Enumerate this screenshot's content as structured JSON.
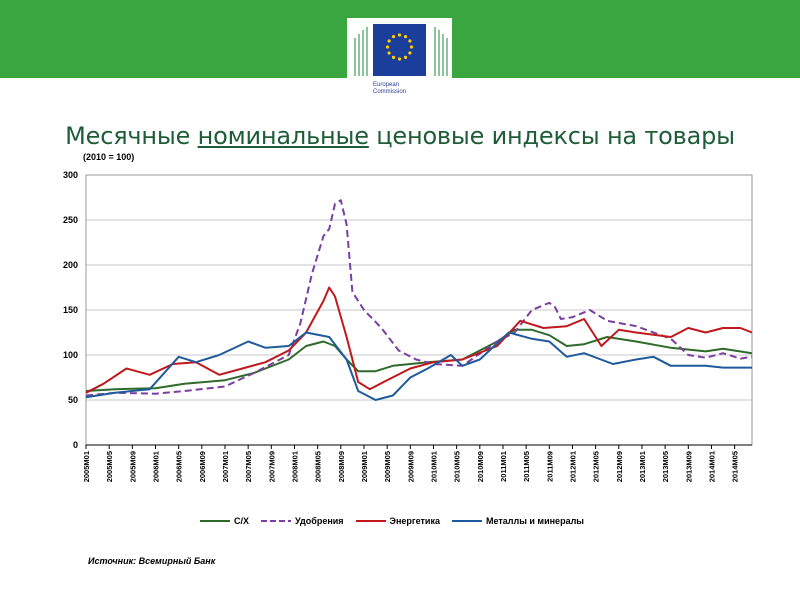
{
  "header": {
    "logo_text_line1": "European",
    "logo_text_line2": "Commission"
  },
  "colors": {
    "band": "#3aa640",
    "title": "#1f5d3a",
    "grid": "#c8c8c8",
    "series_cx": "#2e6b2a",
    "series_fert": "#7a3fa0",
    "series_energy": "#c0181c",
    "series_metals": "#1f5a9c"
  },
  "slide": {
    "title_pre": "Месячные ",
    "title_underlined": "номинальные",
    "title_post": " ценовые индексы на товары",
    "source": "Источник: Всемирный Банк"
  },
  "chart_data": {
    "type": "line",
    "title": "",
    "unit_note": "(2010 = 100)",
    "xlabel": "",
    "ylabel": "",
    "ylim": [
      0,
      300
    ],
    "yticks": [
      0,
      50,
      100,
      150,
      200,
      250,
      300
    ],
    "grid": true,
    "legend_position": "bottom",
    "x_range": [
      "2005M01",
      "2014M08"
    ],
    "xticks": [
      "2005M01",
      "2005M05",
      "2005M09",
      "2006M01",
      "2006M05",
      "2006M09",
      "2007M01",
      "2007M05",
      "2007M09",
      "2008M01",
      "2008M05",
      "2008M09",
      "2009M01",
      "2009M05",
      "2009M09",
      "2010M01",
      "2010M05",
      "2010M09",
      "2011M01",
      "2011M05",
      "2011M09",
      "2012M01",
      "2012M05",
      "2012M09",
      "2013M01",
      "2013M05",
      "2013M09",
      "2014M01",
      "2014M05"
    ],
    "series": [
      {
        "name": "С/Х",
        "style": "solid",
        "points": [
          [
            "2005M01",
            60
          ],
          [
            "2005M06",
            62
          ],
          [
            "2006M01",
            63
          ],
          [
            "2006M06",
            68
          ],
          [
            "2007M01",
            72
          ],
          [
            "2007M06",
            80
          ],
          [
            "2007M12",
            95
          ],
          [
            "2008M03",
            110
          ],
          [
            "2008M06",
            115
          ],
          [
            "2008M08",
            110
          ],
          [
            "2008M10",
            95
          ],
          [
            "2008M12",
            82
          ],
          [
            "2009M03",
            82
          ],
          [
            "2009M06",
            88
          ],
          [
            "2009M12",
            92
          ],
          [
            "2010M06",
            95
          ],
          [
            "2010M12",
            115
          ],
          [
            "2011M03",
            128
          ],
          [
            "2011M06",
            128
          ],
          [
            "2011M09",
            122
          ],
          [
            "2011M12",
            110
          ],
          [
            "2012M03",
            112
          ],
          [
            "2012M07",
            120
          ],
          [
            "2012M12",
            115
          ],
          [
            "2013M06",
            108
          ],
          [
            "2013M12",
            104
          ],
          [
            "2014M03",
            107
          ],
          [
            "2014M08",
            102
          ]
        ]
      },
      {
        "name": "Удобрения",
        "style": "dashed",
        "points": [
          [
            "2005M01",
            55
          ],
          [
            "2005M06",
            58
          ],
          [
            "2006M01",
            57
          ],
          [
            "2006M06",
            60
          ],
          [
            "2007M01",
            65
          ],
          [
            "2007M06",
            80
          ],
          [
            "2007M12",
            100
          ],
          [
            "2008M02",
            135
          ],
          [
            "2008M04",
            190
          ],
          [
            "2008M06",
            232
          ],
          [
            "2008M07",
            240
          ],
          [
            "2008M08",
            268
          ],
          [
            "2008M09",
            272
          ],
          [
            "2008M10",
            245
          ],
          [
            "2008M11",
            170
          ],
          [
            "2009M01",
            150
          ],
          [
            "2009M04",
            130
          ],
          [
            "2009M07",
            105
          ],
          [
            "2009M10",
            95
          ],
          [
            "2010M01",
            90
          ],
          [
            "2010M06",
            88
          ],
          [
            "2010M12",
            115
          ],
          [
            "2011M03",
            125
          ],
          [
            "2011M06",
            150
          ],
          [
            "2011M09",
            158
          ],
          [
            "2011M10",
            153
          ],
          [
            "2011M11",
            140
          ],
          [
            "2012M01",
            142
          ],
          [
            "2012M04",
            150
          ],
          [
            "2012M07",
            138
          ],
          [
            "2012M12",
            132
          ],
          [
            "2013M06",
            118
          ],
          [
            "2013M09",
            100
          ],
          [
            "2013M12",
            97
          ],
          [
            "2014M03",
            102
          ],
          [
            "2014M06",
            96
          ],
          [
            "2014M08",
            98
          ]
        ]
      },
      {
        "name": "Энергетика",
        "style": "solid",
        "points": [
          [
            "2005M01",
            58
          ],
          [
            "2005M04",
            68
          ],
          [
            "2005M08",
            85
          ],
          [
            "2005M12",
            78
          ],
          [
            "2006M04",
            90
          ],
          [
            "2006M08",
            92
          ],
          [
            "2006M12",
            78
          ],
          [
            "2007M04",
            85
          ],
          [
            "2007M08",
            92
          ],
          [
            "2007M12",
            105
          ],
          [
            "2008M03",
            125
          ],
          [
            "2008M06",
            160
          ],
          [
            "2008M07",
            175
          ],
          [
            "2008M08",
            165
          ],
          [
            "2008M10",
            120
          ],
          [
            "2008M12",
            70
          ],
          [
            "2009M02",
            62
          ],
          [
            "2009M05",
            72
          ],
          [
            "2009M09",
            85
          ],
          [
            "2010M01",
            92
          ],
          [
            "2010M06",
            95
          ],
          [
            "2010M12",
            110
          ],
          [
            "2011M04",
            138
          ],
          [
            "2011M08",
            130
          ],
          [
            "2011M12",
            132
          ],
          [
            "2012M03",
            140
          ],
          [
            "2012M06",
            110
          ],
          [
            "2012M09",
            128
          ],
          [
            "2012M12",
            125
          ],
          [
            "2013M06",
            120
          ],
          [
            "2013M09",
            130
          ],
          [
            "2013M12",
            125
          ],
          [
            "2014M03",
            130
          ],
          [
            "2014M06",
            130
          ],
          [
            "2014M08",
            125
          ]
        ]
      },
      {
        "name": "Металлы и минералы",
        "style": "solid",
        "points": [
          [
            "2005M01",
            53
          ],
          [
            "2005M06",
            58
          ],
          [
            "2005M12",
            62
          ],
          [
            "2006M05",
            98
          ],
          [
            "2006M08",
            92
          ],
          [
            "2006M12",
            100
          ],
          [
            "2007M05",
            115
          ],
          [
            "2007M08",
            108
          ],
          [
            "2007M12",
            110
          ],
          [
            "2008M03",
            125
          ],
          [
            "2008M07",
            120
          ],
          [
            "2008M10",
            95
          ],
          [
            "2008M12",
            60
          ],
          [
            "2009M03",
            50
          ],
          [
            "2009M06",
            55
          ],
          [
            "2009M09",
            75
          ],
          [
            "2009M12",
            85
          ],
          [
            "2010M04",
            100
          ],
          [
            "2010M06",
            88
          ],
          [
            "2010M09",
            95
          ],
          [
            "2011M02",
            125
          ],
          [
            "2011M06",
            118
          ],
          [
            "2011M09",
            115
          ],
          [
            "2011M12",
            98
          ],
          [
            "2012M03",
            102
          ],
          [
            "2012M08",
            90
          ],
          [
            "2012M12",
            95
          ],
          [
            "2013M03",
            98
          ],
          [
            "2013M06",
            88
          ],
          [
            "2013M12",
            88
          ],
          [
            "2014M03",
            86
          ],
          [
            "2014M08",
            86
          ]
        ]
      }
    ]
  }
}
